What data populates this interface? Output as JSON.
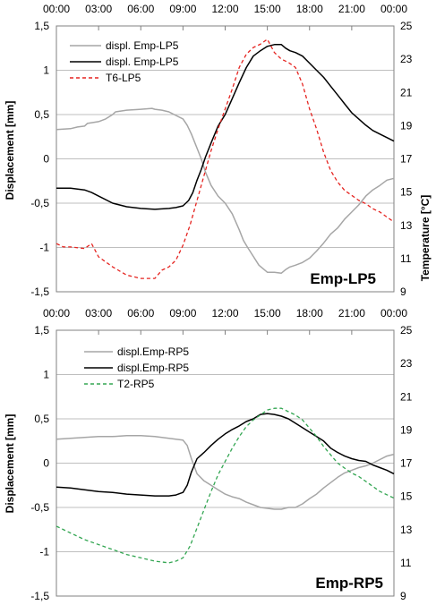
{
  "chart_data": [
    {
      "type": "line",
      "annotation": "Emp-LP5",
      "x_ticks": [
        "00:00",
        "03:00",
        "06:00",
        "09:00",
        "12:00",
        "15:00",
        "18:00",
        "21:00",
        "00:00"
      ],
      "xlim": [
        0,
        24
      ],
      "ylabel": "Displacement [mm]",
      "ylim": [
        -1.5,
        1.5
      ],
      "y_ticks": [
        "1,5",
        "1",
        "0,5",
        "0",
        "-0,5",
        "-1",
        "-1,5"
      ],
      "y2label": "Temperature [°C]",
      "y2lim": [
        9,
        25
      ],
      "y2_ticks": [
        "25",
        "23",
        "21",
        "19",
        "17",
        "15",
        "13",
        "11",
        "9"
      ],
      "grid": "horizontal",
      "legend_position": "top-left",
      "series": [
        {
          "name": "displ. Emp-LP5",
          "axis": "left",
          "color": "#a6a6a6",
          "style": "solid",
          "x": [
            0,
            1,
            1.5,
            2,
            2.2,
            3,
            3.5,
            4,
            4.2,
            5,
            6,
            6.8,
            7,
            7.5,
            8,
            8.5,
            9,
            9.3,
            9.6,
            10,
            10.3,
            10.6,
            11,
            11.5,
            12,
            12.5,
            13,
            13.3,
            13.6,
            14,
            14.4,
            15,
            15.5,
            16,
            16.3,
            16.6,
            17,
            17.5,
            18,
            18.5,
            19,
            19.5,
            20,
            20.5,
            21,
            21.5,
            22,
            22.5,
            23,
            23.5,
            24
          ],
          "values": [
            0.33,
            0.34,
            0.36,
            0.37,
            0.4,
            0.42,
            0.45,
            0.5,
            0.53,
            0.55,
            0.56,
            0.57,
            0.56,
            0.55,
            0.53,
            0.49,
            0.45,
            0.38,
            0.28,
            0.12,
            0.0,
            -0.15,
            -0.3,
            -0.42,
            -0.5,
            -0.62,
            -0.8,
            -0.92,
            -1.0,
            -1.1,
            -1.2,
            -1.28,
            -1.28,
            -1.29,
            -1.25,
            -1.22,
            -1.2,
            -1.17,
            -1.12,
            -1.04,
            -0.95,
            -0.85,
            -0.78,
            -0.68,
            -0.6,
            -0.52,
            -0.42,
            -0.35,
            -0.3,
            -0.24,
            -0.22
          ]
        },
        {
          "name": "displ. Emp-LP5",
          "axis": "left",
          "color": "#000000",
          "style": "solid",
          "x": [
            0,
            1,
            2,
            2.5,
            3,
            4,
            5,
            6,
            7,
            8,
            8.5,
            9,
            9.4,
            9.7,
            10,
            10.3,
            10.6,
            11,
            11.5,
            12,
            12.5,
            13,
            13.5,
            14,
            14.5,
            15,
            15.5,
            16,
            16.3,
            16.6,
            17,
            17.5,
            18,
            18.5,
            19,
            19.5,
            20,
            20.5,
            21,
            21.5,
            22,
            22.5,
            23,
            23.5,
            24
          ],
          "values": [
            -0.33,
            -0.33,
            -0.35,
            -0.38,
            -0.42,
            -0.5,
            -0.54,
            -0.56,
            -0.57,
            -0.56,
            -0.55,
            -0.53,
            -0.47,
            -0.38,
            -0.24,
            -0.12,
            0.02,
            0.18,
            0.37,
            0.5,
            0.68,
            0.86,
            1.03,
            1.16,
            1.22,
            1.27,
            1.29,
            1.29,
            1.25,
            1.22,
            1.2,
            1.16,
            1.08,
            1.0,
            0.92,
            0.82,
            0.72,
            0.62,
            0.52,
            0.45,
            0.38,
            0.32,
            0.28,
            0.24,
            0.2
          ]
        },
        {
          "name": "T6-LP5",
          "axis": "right",
          "color": "#e52420",
          "style": "dashed",
          "x": [
            0,
            0.5,
            1,
            2,
            2.5,
            3,
            3.5,
            4,
            5,
            6,
            7,
            7.5,
            8,
            8.5,
            9,
            9.5,
            10,
            10.5,
            11,
            11.5,
            12,
            12.5,
            13,
            13.5,
            14,
            14.5,
            15,
            15.5,
            16,
            16.5,
            17,
            17.5,
            18,
            18.5,
            19,
            19.5,
            20,
            20.5,
            21,
            21.5,
            22,
            22.5,
            23,
            23.5,
            24
          ],
          "values": [
            11.9,
            11.7,
            11.7,
            11.6,
            11.9,
            11.1,
            10.8,
            10.5,
            10.0,
            9.8,
            9.8,
            10.3,
            10.5,
            10.9,
            11.8,
            13.0,
            14.5,
            16.0,
            17.5,
            18.8,
            20.0,
            21.2,
            22.5,
            23.3,
            23.7,
            23.9,
            24.2,
            23.4,
            23.0,
            22.8,
            22.5,
            21.5,
            20.0,
            18.8,
            17.4,
            16.3,
            15.6,
            15.1,
            14.8,
            14.5,
            14.3,
            14.0,
            13.8,
            13.5,
            13.2
          ]
        }
      ]
    },
    {
      "type": "line",
      "annotation": "Emp-RP5",
      "x_ticks": [
        "00:00",
        "03:00",
        "06:00",
        "09:00",
        "12:00",
        "15:00",
        "18:00",
        "21:00",
        "00:00"
      ],
      "xlim": [
        0,
        24
      ],
      "ylabel": "Displacement [mm]",
      "ylim": [
        -1.5,
        1.5
      ],
      "y_ticks": [
        "1,5",
        "1",
        "0,5",
        "0",
        "-0,5",
        "-1",
        "-1,5"
      ],
      "y2label": "",
      "y2lim": [
        9,
        25
      ],
      "y2_ticks": [
        "25",
        "23",
        "21",
        "19",
        "17",
        "15",
        "13",
        "11",
        "9"
      ],
      "grid": "horizontal",
      "legend_position": "top-left",
      "series": [
        {
          "name": "displ.Emp-RP5",
          "axis": "left",
          "color": "#a6a6a6",
          "style": "solid",
          "x": [
            0,
            1,
            2,
            3,
            4,
            5,
            6,
            7,
            8,
            8.5,
            9,
            9.3,
            9.6,
            10,
            10.5,
            11,
            11.5,
            12,
            12.5,
            13,
            13.5,
            14,
            14.5,
            15,
            15.5,
            16,
            16.5,
            17,
            17.5,
            18,
            18.5,
            19,
            19.5,
            20,
            20.5,
            21,
            21.5,
            22,
            22.5,
            23,
            23.5,
            24
          ],
          "values": [
            0.27,
            0.28,
            0.29,
            0.3,
            0.3,
            0.31,
            0.31,
            0.3,
            0.28,
            0.27,
            0.26,
            0.2,
            0.05,
            -0.12,
            -0.2,
            -0.25,
            -0.3,
            -0.35,
            -0.38,
            -0.4,
            -0.44,
            -0.47,
            -0.5,
            -0.51,
            -0.52,
            -0.52,
            -0.5,
            -0.5,
            -0.46,
            -0.4,
            -0.35,
            -0.28,
            -0.22,
            -0.16,
            -0.11,
            -0.08,
            -0.05,
            -0.03,
            0.0,
            0.04,
            0.08,
            0.1
          ]
        },
        {
          "name": "displ.Emp-RP5",
          "axis": "left",
          "color": "#000000",
          "style": "solid",
          "x": [
            0,
            1,
            2,
            3,
            4,
            5,
            6,
            7,
            8,
            8.5,
            9,
            9.3,
            9.6,
            10,
            10.5,
            11,
            11.5,
            12,
            12.5,
            13,
            13.5,
            14,
            14.5,
            15,
            15.5,
            16,
            16.5,
            17,
            17.5,
            18,
            18.5,
            19,
            19.5,
            20,
            20.5,
            21,
            21.5,
            22,
            22.5,
            23,
            23.5,
            24
          ],
          "values": [
            -0.27,
            -0.28,
            -0.3,
            -0.32,
            -0.33,
            -0.35,
            -0.36,
            -0.37,
            -0.37,
            -0.36,
            -0.33,
            -0.25,
            -0.1,
            0.05,
            0.12,
            0.2,
            0.27,
            0.33,
            0.38,
            0.42,
            0.47,
            0.5,
            0.55,
            0.56,
            0.55,
            0.53,
            0.5,
            0.45,
            0.4,
            0.35,
            0.3,
            0.25,
            0.17,
            0.12,
            0.08,
            0.05,
            0.03,
            0.02,
            -0.02,
            -0.05,
            -0.08,
            -0.12
          ]
        },
        {
          "name": "T2-RP5",
          "axis": "right",
          "color": "#33a652",
          "style": "dashed",
          "x": [
            0,
            1,
            2,
            3,
            4,
            5,
            6,
            7,
            8,
            8.5,
            9,
            9.5,
            10,
            10.5,
            11,
            11.5,
            12,
            12.5,
            13,
            13.5,
            14,
            14.5,
            15,
            15.5,
            16,
            16.5,
            17,
            17.5,
            18,
            18.5,
            19,
            19.5,
            20,
            20.5,
            21,
            21.5,
            22,
            22.5,
            23,
            23.5,
            24
          ],
          "values": [
            13.2,
            12.8,
            12.4,
            12.1,
            11.8,
            11.5,
            11.3,
            11.1,
            11.0,
            11.1,
            11.3,
            12.0,
            13.1,
            14.2,
            15.3,
            16.3,
            17.1,
            17.9,
            18.6,
            19.2,
            19.6,
            19.9,
            20.2,
            20.3,
            20.3,
            20.1,
            19.9,
            19.6,
            19.1,
            18.6,
            18.0,
            17.5,
            17.0,
            16.7,
            16.4,
            16.2,
            15.9,
            15.6,
            15.3,
            15.1,
            14.9
          ]
        }
      ]
    }
  ]
}
